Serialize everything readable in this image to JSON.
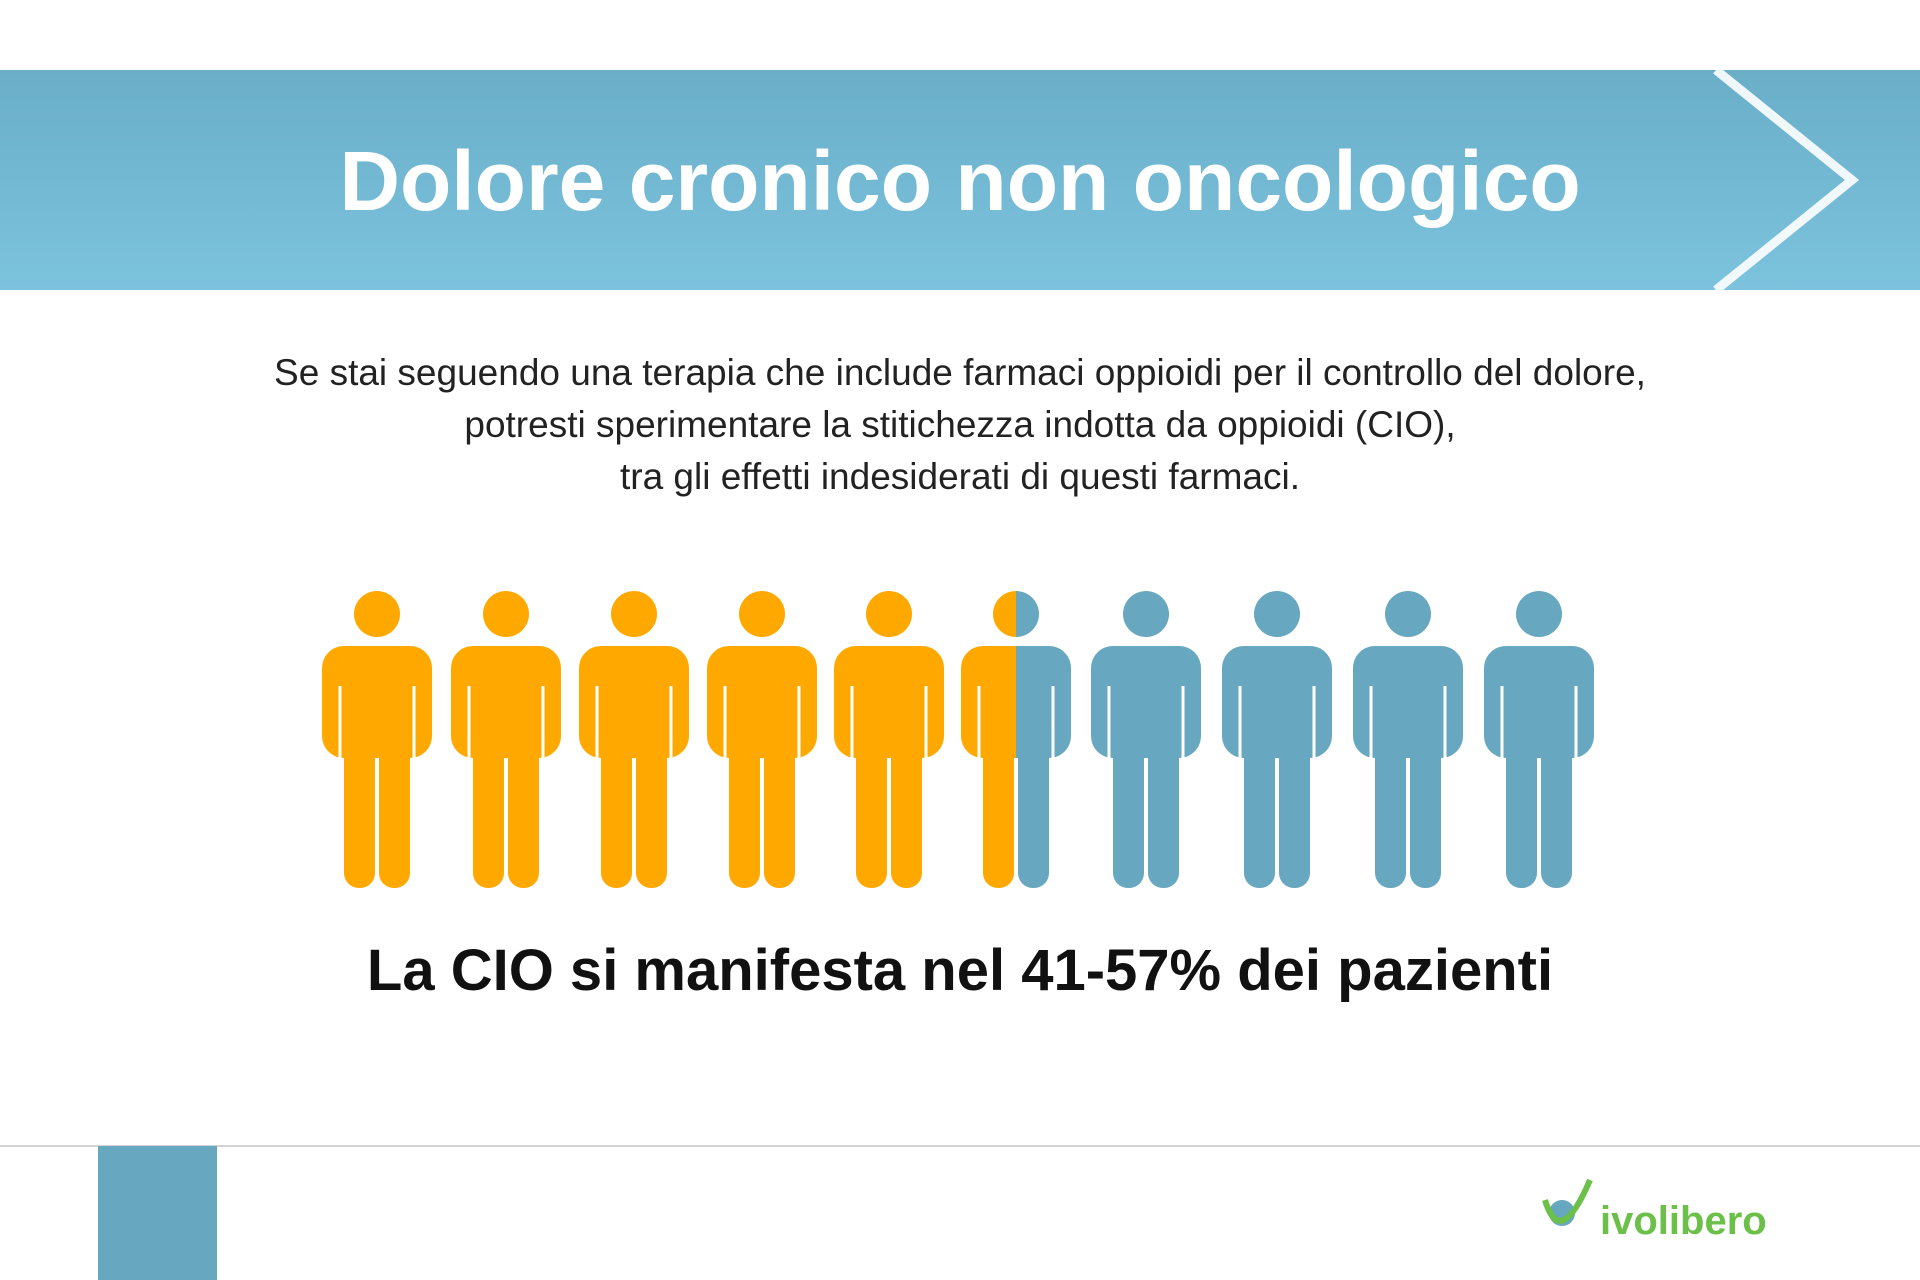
{
  "header": {
    "title": "Dolore cronico non oncologico"
  },
  "intro": {
    "lines": [
      "Se stai seguendo una terapia che include farmaci oppioidi per il controllo del dolore,",
      "potresti sperimentare la stitichezza indotta da oppioidi (CIO),",
      "tra gli effetti indesiderati di questi farmaci."
    ]
  },
  "statement": "La CIO si manifesta nel 41-57% dei pazienti",
  "logo": "ivolibero"
}
